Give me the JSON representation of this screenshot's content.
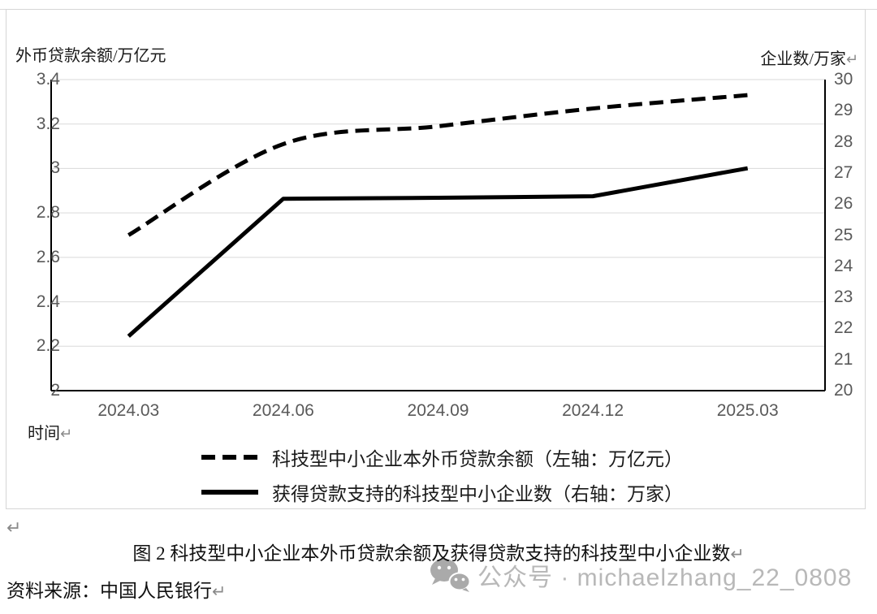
{
  "page": {
    "paragraph_mark": "↵",
    "caption": "图 2 科技型中小企业本外币贷款余额及获得贷款支持的科技型中小企业数",
    "source": "资料来源：中国人民银行",
    "watermark": {
      "icon": "wechat-icon",
      "text": "公众号 · michaelzhang_22_0808",
      "color": "#ACACAC"
    }
  },
  "chart_data": {
    "type": "line",
    "categories": [
      "2024.03",
      "2024.06",
      "2024.09",
      "2024.12",
      "2025.03"
    ],
    "series": [
      {
        "name": "科技型中小企业本外币贷款余额（左轴：万亿元）",
        "axis": "left",
        "line_style": "dashed",
        "smooth": true,
        "values": [
          2.7,
          3.11,
          3.19,
          3.27,
          3.33
        ]
      },
      {
        "name": "获得贷款支持的科技型中小企业数（右轴：万家）",
        "axis": "right",
        "line_style": "solid",
        "smooth": false,
        "values": [
          21.75,
          26.17,
          26.2,
          26.25,
          27.15
        ]
      }
    ],
    "left_axis": {
      "title": "外币贷款余额/万亿元",
      "min": 2,
      "max": 3.4,
      "step": 0.2,
      "tick_labels": [
        "3.4",
        "3.2",
        "3",
        "2.8",
        "2.6",
        "2.4",
        "2.2",
        "2"
      ]
    },
    "right_axis": {
      "title": "企业数/万家",
      "min": 20,
      "max": 30,
      "step": 1,
      "tick_labels": [
        "30",
        "29",
        "28",
        "27",
        "26",
        "25",
        "24",
        "23",
        "22",
        "21",
        "20"
      ]
    },
    "x_axis": {
      "title": "时间",
      "labels": [
        "2024.03",
        "2024.06",
        "2024.09",
        "2024.12",
        "2025.03"
      ]
    },
    "grid": true,
    "legend_position": "bottom",
    "colors": {
      "line": "#000000",
      "grid": "#d9d9d9",
      "tick_text": "#595959",
      "frame": "#d6d6d6"
    }
  }
}
